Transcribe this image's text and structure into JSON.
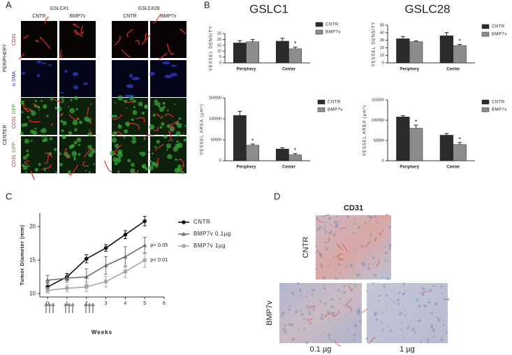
{
  "panel_a": {
    "label": "A",
    "groups": [
      "GSLC#1",
      "GSLC#28"
    ],
    "conditions": [
      "CNTR",
      "BMP7v",
      "CNTR",
      "BMP7v"
    ],
    "regions": [
      "PERIPHERY",
      "CENTER"
    ],
    "rows": [
      [
        "CD31"
      ],
      [
        "α SMA"
      ],
      [
        "CD31",
        "GFP"
      ],
      [
        "CD31",
        "GFP"
      ]
    ]
  },
  "panel_b": {
    "label": "B",
    "titles": [
      "GSLC1",
      "GSLC28"
    ]
  },
  "panel_c": {
    "label": "C"
  },
  "panel_d": {
    "label": "D",
    "title": "CD31",
    "rows": [
      "CNTR",
      "BMP7v"
    ],
    "doses": [
      "0.1 µg",
      "1 µg"
    ]
  },
  "chart_data": [
    {
      "type": "bar",
      "ylabel": "VESSEL DENSITY",
      "categories": [
        "Periphery",
        "Center"
      ],
      "series": [
        {
          "name": "CNTR",
          "color": "#2b2b2b",
          "values": [
            17,
            18.5
          ],
          "errors": [
            2,
            2.5
          ]
        },
        {
          "name": "BMP7v",
          "color": "#8c8c8c",
          "values": [
            18,
            12
          ],
          "errors": [
            2,
            1.5
          ],
          "markers": [
            null,
            "*"
          ]
        }
      ],
      "ylim": [
        0,
        25
      ],
      "yticks": [
        0,
        5,
        10,
        15,
        20,
        25
      ]
    },
    {
      "type": "bar",
      "ylabel": "VESSEL DENSITY",
      "categories": [
        "Periphery",
        "Center"
      ],
      "series": [
        {
          "name": "CNTR",
          "color": "#2b2b2b",
          "values": [
            32,
            36
          ],
          "errors": [
            3,
            4
          ]
        },
        {
          "name": "BMP7v",
          "color": "#8c8c8c",
          "values": [
            28,
            23
          ],
          "errors": [
            1,
            1.5
          ],
          "markers": [
            null,
            "*"
          ]
        }
      ],
      "ylim": [
        0,
        50
      ],
      "yticks": [
        0,
        10,
        20,
        30,
        40,
        50
      ]
    },
    {
      "type": "bar",
      "ylabel": "VESSEL AREA (µm²)",
      "categories": [
        "Periphery",
        "Center"
      ],
      "series": [
        {
          "name": "CNTR",
          "color": "#2b2b2b",
          "values": [
            108000,
            28000
          ],
          "errors": [
            10000,
            3000
          ]
        },
        {
          "name": "BMP7v",
          "color": "#8c8c8c",
          "values": [
            37000,
            14000
          ],
          "errors": [
            3000,
            3000
          ],
          "markers": [
            "*",
            "*"
          ]
        }
      ],
      "ylim": [
        0,
        150000
      ],
      "yticks": [
        0,
        50000,
        100000,
        150000
      ]
    },
    {
      "type": "bar",
      "ylabel": "VESSEL AREA (µm²)",
      "categories": [
        "Periphery",
        "Center"
      ],
      "series": [
        {
          "name": "CNTR",
          "color": "#2b2b2b",
          "values": [
            108000,
            63000
          ],
          "errors": [
            3000,
            4000
          ]
        },
        {
          "name": "BMP7v",
          "color": "#8c8c8c",
          "values": [
            80000,
            40000
          ],
          "errors": [
            8000,
            5000
          ],
          "markers": [
            "*",
            "*"
          ]
        }
      ],
      "ylim": [
        0,
        150000
      ],
      "yticks": [
        0,
        50000,
        100000,
        150000
      ]
    },
    {
      "type": "line",
      "xlabel": "Weeks",
      "ylabel": "Tumor Diameter (mm)",
      "x": [
        0,
        1,
        2,
        3,
        4,
        5
      ],
      "xlim": [
        -0.4,
        6
      ],
      "xticks": [
        0,
        1,
        2,
        3,
        4,
        5,
        6
      ],
      "ylim": [
        9.5,
        22
      ],
      "yticks": [
        10,
        15,
        20
      ],
      "series": [
        {
          "name": "CNTR",
          "color": "#111111",
          "marker": "circle",
          "values": [
            11,
            12.5,
            15.2,
            16.8,
            18.8,
            20.8
          ],
          "errors": [
            0.6,
            0.5,
            0.6,
            0.5,
            0.6,
            0.7
          ]
        },
        {
          "name": "BMP7v 0.1µg",
          "color": "#6e6e6e",
          "marker": "triangle",
          "values": [
            12,
            12.3,
            12.5,
            14.2,
            15.5,
            17.2
          ],
          "errors": [
            0.7,
            0.6,
            1.2,
            1.3,
            1.5,
            1.2
          ],
          "note": "p< 0.05"
        },
        {
          "name": "BMP7v 1µg",
          "color": "#a8a8a8",
          "marker": "square",
          "values": [
            10.5,
            10.8,
            11,
            11.8,
            13.3,
            15
          ],
          "errors": [
            0.4,
            0.5,
            0.7,
            0.8,
            0.9,
            1.1
          ],
          "note": "p< 0.01"
        }
      ],
      "legend": "right"
    }
  ]
}
